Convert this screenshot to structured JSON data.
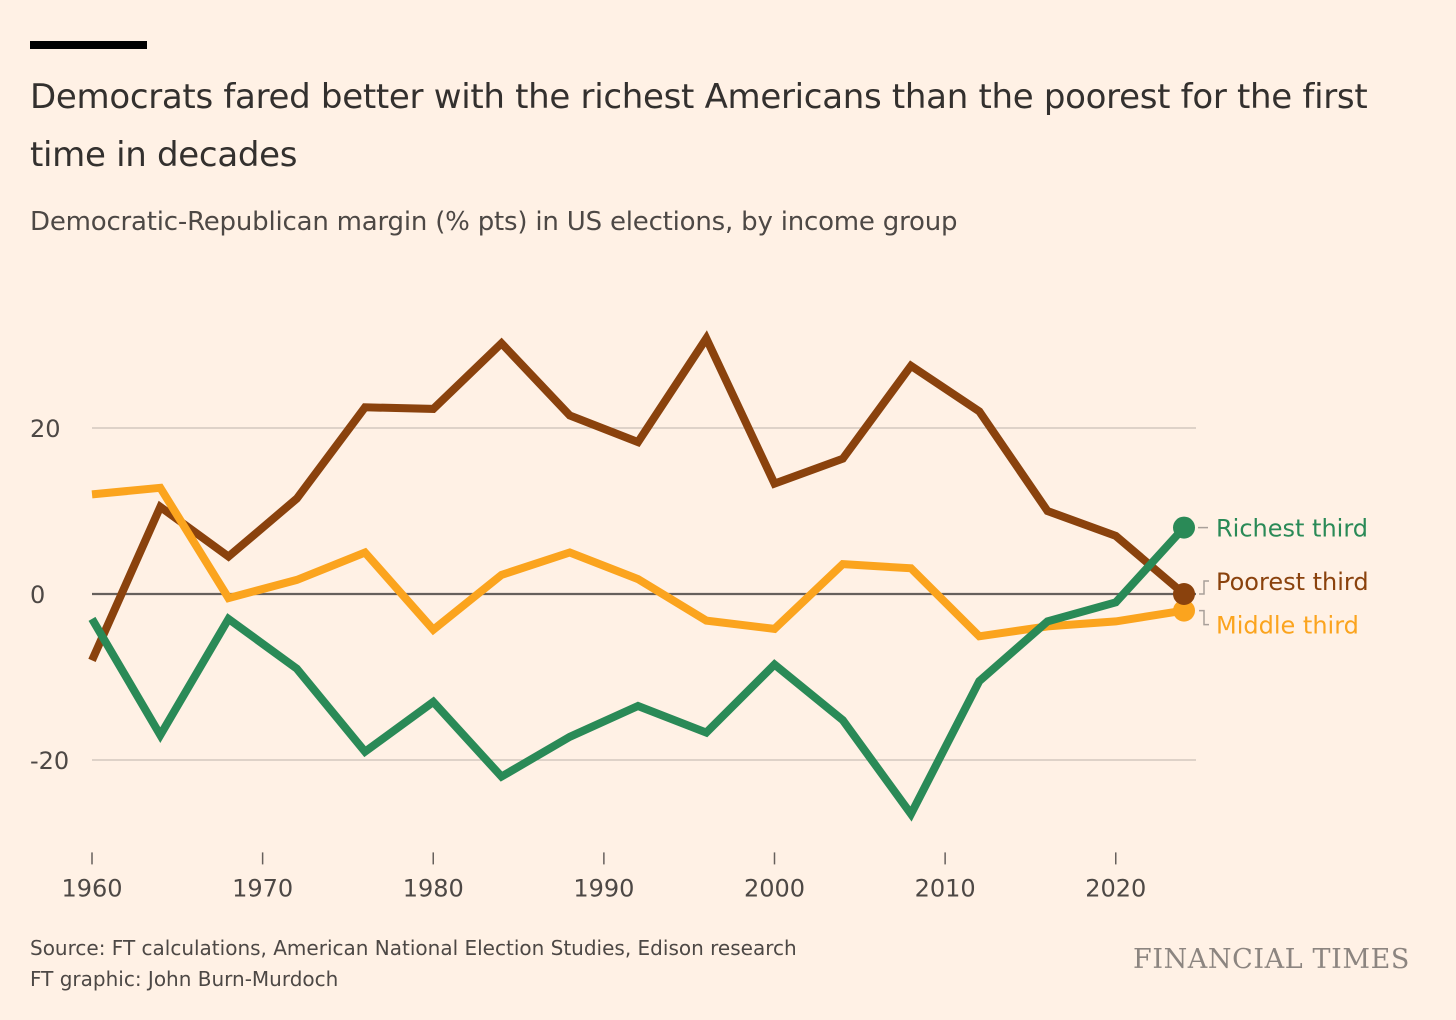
{
  "header": {
    "title": "Democrats fared better with the richest Americans than the poorest for the first time in decades",
    "subtitle": "Democratic-Republican margin (% pts) in US elections, by income group"
  },
  "footer": {
    "source": "Source: FT calculations, American National Election Studies, Edison research",
    "credit": "FT graphic: John Burn-Murdoch",
    "logo": "FINANCIAL TIMES"
  },
  "colors": {
    "background": "#fff1e5",
    "grid": "#c9c0b6",
    "zero_line": "#66605c",
    "richest": "#2a8a57",
    "poorest": "#8a420d",
    "middle": "#fba41e"
  },
  "chart_data": {
    "type": "line",
    "title": "Democrats fared better with the richest Americans than the poorest for the first time in decades",
    "subtitle": "Democratic-Republican margin (% pts) in US elections, by income group",
    "xlabel": "",
    "ylabel": "",
    "xlim": [
      1960,
      2024
    ],
    "ylim": [
      -28,
      32
    ],
    "x_ticks": [
      1960,
      1970,
      1980,
      1990,
      2000,
      2010,
      2020
    ],
    "y_ticks": [
      20,
      0,
      -20
    ],
    "grid": true,
    "legend": "direct labels at line ends (right)",
    "series": [
      {
        "name": "Poorest third",
        "color": "#8a420d",
        "x": [
          1960,
          1964,
          1968,
          1972,
          1976,
          1980,
          1984,
          1988,
          1992,
          1996,
          2000,
          2004,
          2008,
          2012,
          2016,
          2020,
          2024
        ],
        "values": [
          -8,
          10.5,
          4.5,
          11.5,
          22.5,
          22.3,
          30.2,
          21.5,
          18.3,
          30.8,
          13.3,
          16.3,
          27.5,
          22,
          10,
          7,
          0
        ]
      },
      {
        "name": "Middle third",
        "color": "#fba41e",
        "x": [
          1960,
          1964,
          1968,
          1972,
          1976,
          1980,
          1984,
          1988,
          1992,
          1996,
          2000,
          2004,
          2008,
          2012,
          2016,
          2020,
          2024
        ],
        "values": [
          12,
          12.8,
          -0.5,
          1.7,
          5,
          -4.3,
          2.3,
          5,
          1.8,
          -3.2,
          -4.2,
          3.6,
          3.1,
          -5.1,
          -3.9,
          -3.3,
          -2
        ]
      },
      {
        "name": "Richest third",
        "color": "#2a8a57",
        "x": [
          1960,
          1964,
          1968,
          1972,
          1976,
          1980,
          1984,
          1988,
          1992,
          1996,
          2000,
          2004,
          2008,
          2012,
          2016,
          2020,
          2024
        ],
        "values": [
          -3,
          -17,
          -3,
          -9,
          -19,
          -13,
          -22,
          -17.2,
          -13.5,
          -16.7,
          -8.5,
          -15.2,
          -26.5,
          -10.5,
          -3.3,
          -1,
          8
        ]
      }
    ]
  }
}
